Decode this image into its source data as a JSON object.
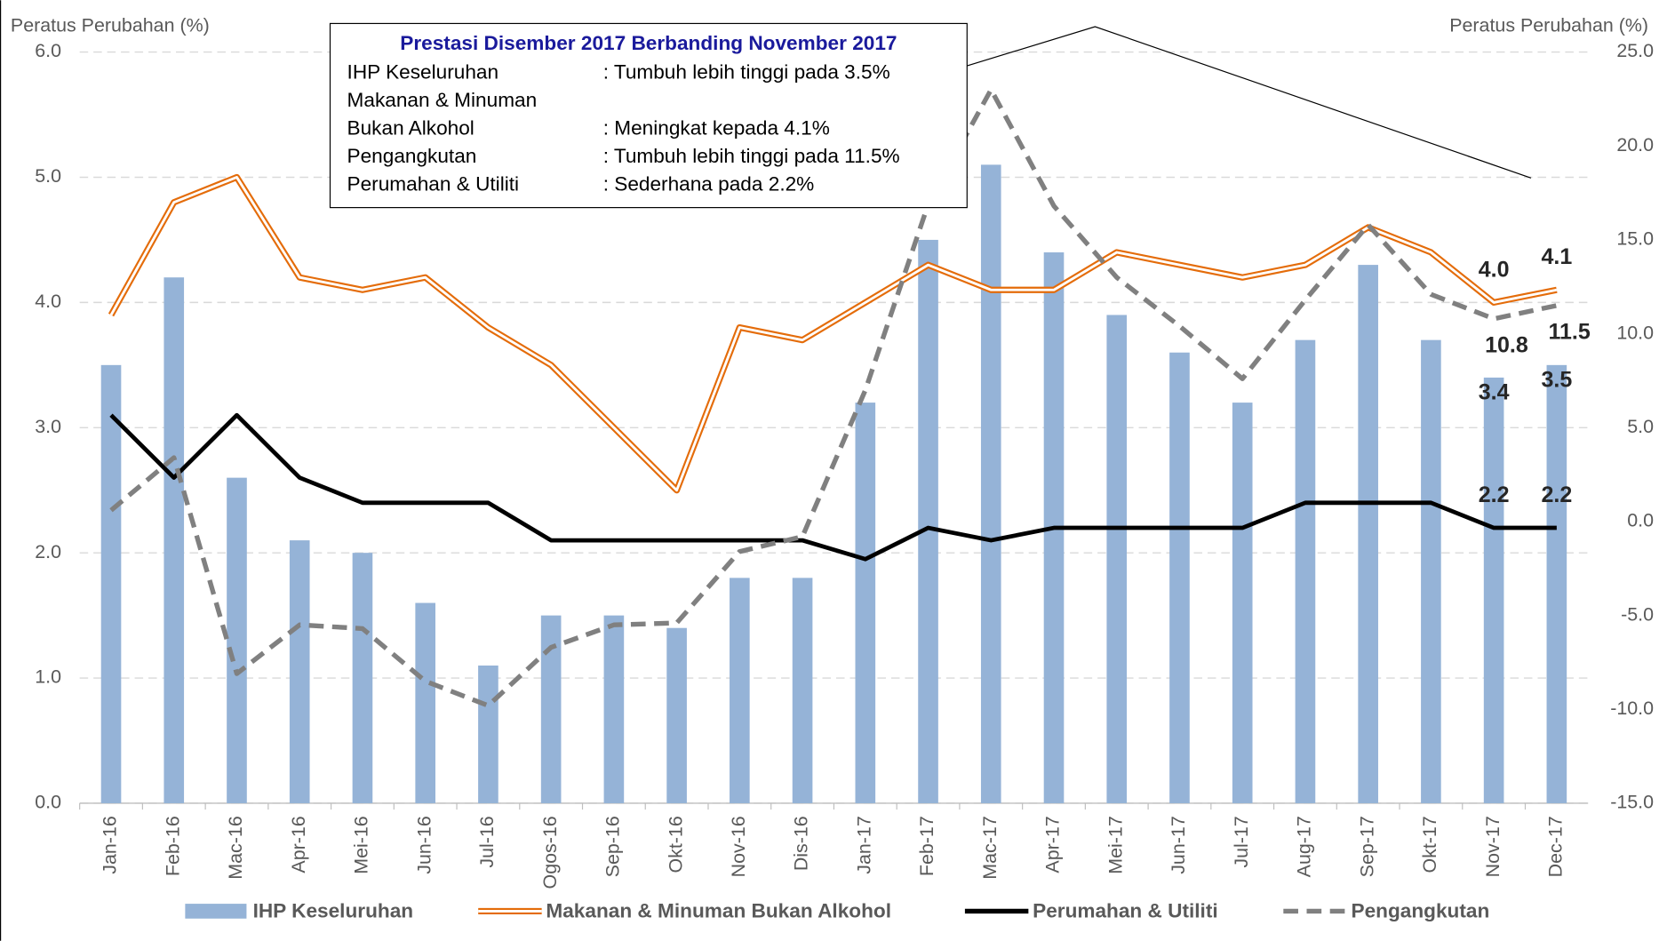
{
  "chart_data": {
    "type": "combo",
    "y_title": "Peratus Perubahan (%)",
    "y2_title": "Peratus Perubahan (%)",
    "categories": [
      "Jan-16",
      "Feb-16",
      "Mac-16",
      "Apr-16",
      "Mei-16",
      "Jun-16",
      "Jul-16",
      "Ogos-16",
      "Sep-16",
      "Okt-16",
      "Nov-16",
      "Dis-16",
      "Jan-17",
      "Feb-17",
      "Mac-17",
      "Apr-17",
      "Mei-17",
      "Jun-17",
      "Jul-17",
      "Aug-17",
      "Sep-17",
      "Okt-17",
      "Nov-17",
      "Dec-17"
    ],
    "ylim": [
      0,
      6
    ],
    "yticks": [
      {
        "value": 0,
        "label": "0.0"
      },
      {
        "value": 1,
        "label": "1.0"
      },
      {
        "value": 2,
        "label": "2.0"
      },
      {
        "value": 3,
        "label": "3.0"
      },
      {
        "value": 4,
        "label": "4.0"
      },
      {
        "value": 5,
        "label": "5.0"
      },
      {
        "value": 6,
        "label": "6.0"
      }
    ],
    "y2lim": [
      -15,
      25
    ],
    "y2ticks": [
      {
        "value": -15,
        "label": "-15.0"
      },
      {
        "value": -10,
        "label": "-10.0"
      },
      {
        "value": -5,
        "label": "-5.0"
      },
      {
        "value": 0,
        "label": "0.0"
      },
      {
        "value": 5,
        "label": "5.0"
      },
      {
        "value": 10,
        "label": "10.0"
      },
      {
        "value": 15,
        "label": "15.0"
      },
      {
        "value": 20,
        "label": "20.0"
      },
      {
        "value": 25,
        "label": "25.0"
      }
    ],
    "grid": true,
    "legend": "bottom",
    "series": [
      {
        "name": "IHP Keseluruhan",
        "type": "bar",
        "color": "#95b3d7",
        "values": [
          3.5,
          4.2,
          2.6,
          2.1,
          2.0,
          1.6,
          1.1,
          1.5,
          1.5,
          1.4,
          1.8,
          1.8,
          3.2,
          4.5,
          5.1,
          4.4,
          3.9,
          3.6,
          3.2,
          3.7,
          4.3,
          3.7,
          3.4,
          3.5
        ],
        "value_labels": [
          null,
          null,
          null,
          null,
          null,
          null,
          null,
          null,
          null,
          null,
          null,
          null,
          null,
          null,
          null,
          null,
          null,
          null,
          null,
          null,
          null,
          null,
          "3.4",
          "3.5"
        ]
      },
      {
        "name": "Makanan & Minuman Bukan Alkohol",
        "type": "double-line",
        "color": "#e46c0a",
        "values": [
          3.9,
          4.8,
          5.0,
          4.2,
          4.1,
          4.2,
          3.8,
          3.5,
          3.0,
          2.5,
          3.8,
          3.7,
          4.0,
          4.3,
          4.1,
          4.1,
          4.4,
          4.3,
          4.2,
          4.3,
          4.6,
          4.4,
          4.0,
          4.1
        ],
        "value_labels": [
          null,
          null,
          null,
          null,
          null,
          null,
          null,
          null,
          null,
          null,
          null,
          null,
          null,
          null,
          null,
          null,
          null,
          null,
          null,
          null,
          null,
          null,
          "4.0",
          "4.1"
        ]
      },
      {
        "name": "Perumahan & Utiliti",
        "type": "line",
        "color": "#000000",
        "values": [
          3.1,
          2.6,
          3.1,
          2.6,
          2.4,
          2.4,
          2.4,
          2.1,
          2.1,
          2.1,
          2.1,
          2.1,
          1.95,
          2.2,
          2.1,
          2.2,
          2.2,
          2.2,
          2.2,
          2.4,
          2.4,
          2.4,
          2.2,
          2.2
        ],
        "value_labels": [
          null,
          null,
          null,
          null,
          null,
          null,
          null,
          null,
          null,
          null,
          null,
          null,
          null,
          null,
          null,
          null,
          null,
          null,
          null,
          null,
          null,
          null,
          "2.2",
          "2.2"
        ]
      },
      {
        "name": "Pengangkutan",
        "type": "dashed-line",
        "color": "#808080",
        "axis": "y2",
        "values": [
          0.6,
          3.4,
          -8.1,
          -5.5,
          -5.7,
          -8.5,
          -9.8,
          -6.7,
          -5.5,
          -5.4,
          -1.6,
          -0.8,
          7.0,
          16.9,
          23.0,
          16.8,
          13.0,
          10.4,
          7.6,
          11.8,
          15.8,
          12.1,
          10.8,
          11.5
        ],
        "value_labels": [
          null,
          null,
          null,
          null,
          null,
          null,
          null,
          null,
          null,
          null,
          null,
          null,
          null,
          null,
          null,
          null,
          null,
          null,
          null,
          null,
          null,
          null,
          "10.8",
          "11.5"
        ]
      }
    ],
    "annotation": {
      "title": "Prestasi Disember 2017 Berbanding November 2017",
      "rows": [
        {
          "label": "IHP Keseluruhan",
          "text": ": Tumbuh lebih tinggi pada 3.5%"
        },
        {
          "label": "Makanan & Minuman"
        },
        {
          "label": "Bukan Alkohol",
          "text": ": Meningkat kepada 4.1%"
        },
        {
          "label": "Pengangkutan",
          "text": ": Tumbuh lebih tinggi pada 11.5%"
        },
        {
          "label": "Perumahan & Utiliti",
          "text": ": Sederhana pada 2.2%"
        }
      ]
    }
  }
}
